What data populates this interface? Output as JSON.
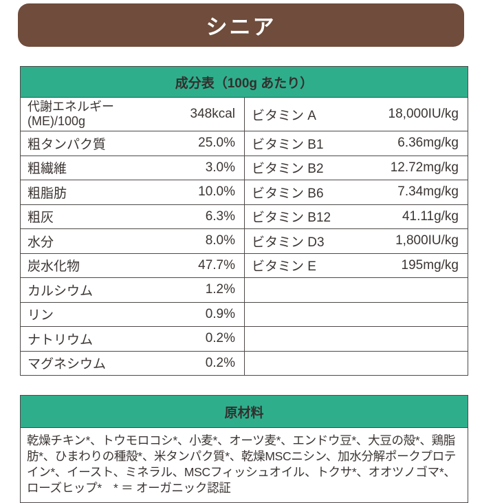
{
  "header": {
    "title": "シニア"
  },
  "composition": {
    "title": "成分表（100g あたり）",
    "left_rows": [
      {
        "label_lines": [
          "代謝エネルギー",
          "(ME)/100g"
        ],
        "value": "348kcal"
      },
      {
        "label": "粗タンパク質",
        "value": "25.0%"
      },
      {
        "label": "粗繊維",
        "value": "3.0%"
      },
      {
        "label": "粗脂肪",
        "value": "10.0%"
      },
      {
        "label": "粗灰",
        "value": "6.3%"
      },
      {
        "label": "水分",
        "value": "8.0%"
      },
      {
        "label": "炭水化物",
        "value": "47.7%"
      },
      {
        "label": "カルシウム",
        "value": "1.2%"
      },
      {
        "label": "リン",
        "value": "0.9%"
      },
      {
        "label": "ナトリウム",
        "value": "0.2%"
      },
      {
        "label": "マグネシウム",
        "value": "0.2%"
      }
    ],
    "right_rows": [
      {
        "label": "ビタミン A",
        "value": "18,000IU/kg"
      },
      {
        "label": "ビタミン B1",
        "value": "6.36mg/kg"
      },
      {
        "label": "ビタミン B2",
        "value": "12.72mg/kg"
      },
      {
        "label": "ビタミン B6",
        "value": "7.34mg/kg"
      },
      {
        "label": "ビタミン B12",
        "value": "41.11g/kg"
      },
      {
        "label": "ビタミン D3",
        "value": "1,800IU/kg"
      },
      {
        "label": "ビタミン E",
        "value": "195mg/kg"
      },
      {
        "label": "",
        "value": ""
      },
      {
        "label": "",
        "value": ""
      },
      {
        "label": "",
        "value": ""
      },
      {
        "label": "",
        "value": ""
      }
    ]
  },
  "ingredients": {
    "title": "原材料",
    "text": "乾燥チキン*、トウモロコシ*、小麦*、オーツ麦*、エンドウ豆*、大豆の殻*、鶏脂肪*、ひまわりの種殻*、米タンパク質*、乾燥MSCニシン、加水分解ポークプロテイン*、イースト、ミネラル、MSCフィッシュオイル、トクサ*、オオツノゴマ*、ローズヒップ*　* ＝ オーガニック認証"
  },
  "colors": {
    "accent_teal": "#2fae8c",
    "brand_brown": "#6f4c3b",
    "text": "#3b3533",
    "border": "#4c4847"
  }
}
